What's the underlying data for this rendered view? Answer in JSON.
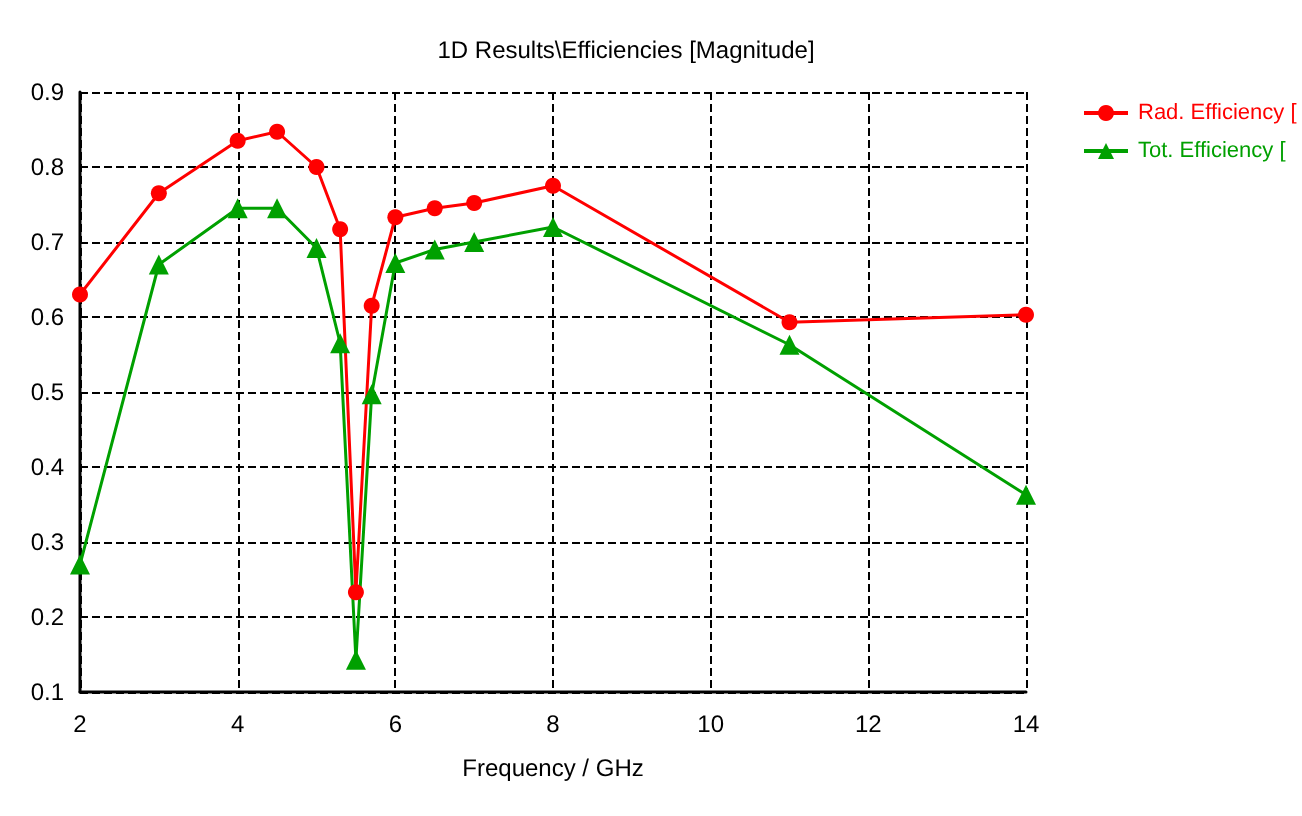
{
  "chart_data": {
    "type": "line",
    "title": "1D Results\\Efficiencies [Magnitude]",
    "xlabel": "Frequency / GHz",
    "x": [
      2,
      3,
      4,
      4.5,
      5,
      5.3,
      5.5,
      5.7,
      6,
      6.5,
      7,
      8,
      11,
      14
    ],
    "series": [
      {
        "name": "Rad. Efficiency [",
        "color": "#ff0000",
        "marker": "circle",
        "values": [
          0.63,
          0.765,
          0.835,
          0.847,
          0.8,
          0.717,
          0.233,
          0.615,
          0.733,
          0.745,
          0.752,
          0.775,
          0.593,
          0.603
        ]
      },
      {
        "name": "Tot. Efficiency [",
        "color": "#00a000",
        "marker": "triangle",
        "values": [
          0.27,
          0.67,
          0.745,
          0.745,
          0.692,
          0.565,
          0.143,
          0.497,
          0.672,
          0.69,
          0.7,
          0.72,
          0.563,
          0.363
        ]
      }
    ],
    "xlim": [
      2,
      14
    ],
    "xticks": [
      2,
      4,
      6,
      8,
      10,
      12,
      14
    ],
    "ylim": [
      0.1,
      0.9
    ],
    "yticks": [
      0.1,
      0.2,
      0.3,
      0.4,
      0.5,
      0.6,
      0.7,
      0.8,
      0.9
    ],
    "grid": true,
    "legend": "top right",
    "line_style": "solid"
  }
}
